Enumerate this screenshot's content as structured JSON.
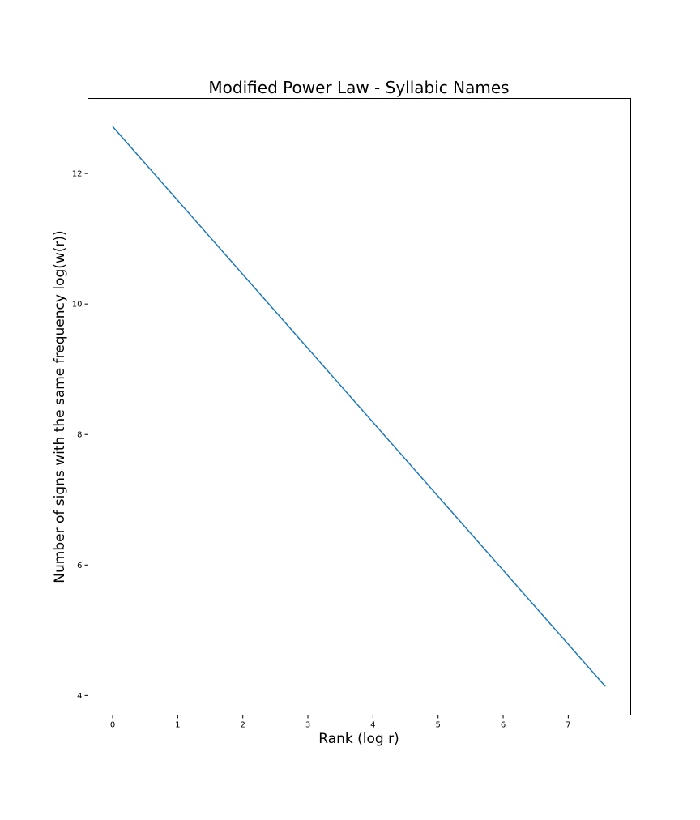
{
  "chart_data": {
    "type": "line",
    "title": "Modified Power Law - Syllabic Names",
    "xlabel": "Rank (log r)",
    "ylabel": "Number of signs with the same frequency log(w(r))",
    "xlim": [
      -0.38,
      7.96
    ],
    "ylim": [
      3.7,
      13.15
    ],
    "xticks": [
      0,
      1,
      2,
      3,
      4,
      5,
      6,
      7
    ],
    "yticks": [
      4,
      6,
      8,
      10,
      12
    ],
    "grid": false,
    "legend": "none",
    "series": [
      {
        "color": "#1f77b4",
        "x": [
          0,
          7.57
        ],
        "y": [
          12.72,
          4.14
        ]
      }
    ]
  }
}
